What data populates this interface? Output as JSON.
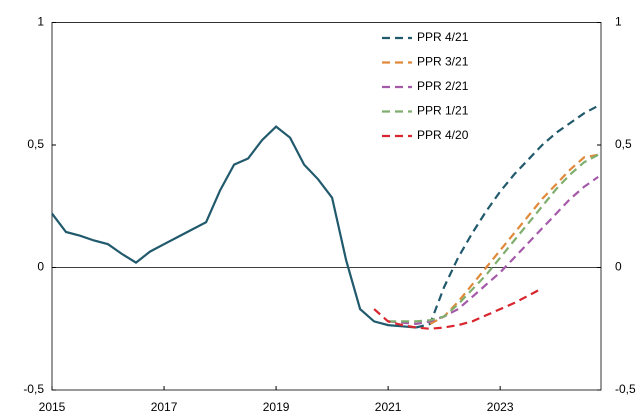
{
  "chart_data": {
    "type": "line",
    "xlim": [
      2015,
      2024.8
    ],
    "xticks": [
      2015,
      2017,
      2019,
      2021,
      2023
    ],
    "ylim": [
      -0.5,
      1
    ],
    "yticks": [
      {
        "value": -0.5,
        "label": "-0,5"
      },
      0,
      {
        "value": 0.5,
        "label": "0,5"
      },
      1
    ],
    "y2lim": [
      -0.5,
      1
    ],
    "y2ticks": [
      {
        "value": -0.5,
        "label": "-0,5"
      },
      0,
      {
        "value": 0.5,
        "label": "0,5"
      },
      1
    ],
    "zero_line": true,
    "legend": "top-right",
    "series": [
      {
        "color": "#215a6d",
        "style": "solid",
        "x": [
          2015,
          2015.25,
          2015.5,
          2015.75,
          2016,
          2016.25,
          2016.5,
          2016.75,
          2017,
          2017.25,
          2017.5,
          2017.75,
          2018,
          2018.25,
          2018.5,
          2018.75,
          2019,
          2019.25,
          2019.5,
          2019.75,
          2020,
          2020.25,
          2020.5,
          2020.75,
          2021,
          2021.25,
          2021.5
        ],
        "values": [
          0.22,
          0.145,
          0.13,
          0.11,
          0.095,
          0.055,
          0.02,
          0.065,
          0.095,
          0.125,
          0.155,
          0.185,
          0.315,
          0.42,
          0.445,
          0.52,
          0.575,
          0.53,
          0.42,
          0.36,
          0.285,
          0.03,
          -0.17,
          -0.22,
          -0.235,
          -0.24,
          -0.245
        ]
      },
      {
        "name": "PPR 4/21",
        "color": "#215a6d",
        "style": "dashed",
        "x": [
          2021.5,
          2021.75,
          2022,
          2022.25,
          2022.5,
          2022.75,
          2023,
          2023.25,
          2023.5,
          2023.75,
          2024,
          2024.25,
          2024.5,
          2024.75
        ],
        "values": [
          -0.245,
          -0.23,
          -0.08,
          0.04,
          0.14,
          0.23,
          0.31,
          0.38,
          0.44,
          0.5,
          0.55,
          0.59,
          0.63,
          0.66
        ]
      },
      {
        "name": "PPR 3/21",
        "color": "#e0893a",
        "style": "dashed",
        "x": [
          2021.75,
          2022,
          2022.25,
          2022.5,
          2022.75,
          2023,
          2023.25,
          2023.5,
          2023.75,
          2024,
          2024.25,
          2024.5,
          2024.75
        ],
        "values": [
          -0.23,
          -0.2,
          -0.14,
          -0.07,
          0.0,
          0.07,
          0.14,
          0.21,
          0.28,
          0.34,
          0.4,
          0.45,
          0.46
        ]
      },
      {
        "name": "PPR 2/21",
        "color": "#a45aa8",
        "style": "dashed",
        "x": [
          2021,
          2021.25,
          2021.5,
          2021.75,
          2022,
          2022.25,
          2022.5,
          2022.75,
          2023,
          2023.25,
          2023.5,
          2023.75,
          2024,
          2024.25,
          2024.5,
          2024.75
        ],
        "values": [
          -0.22,
          -0.225,
          -0.23,
          -0.22,
          -0.2,
          -0.17,
          -0.12,
          -0.07,
          -0.02,
          0.04,
          0.1,
          0.16,
          0.22,
          0.28,
          0.33,
          0.37
        ]
      },
      {
        "name": "PPR 1/21",
        "color": "#7fae6e",
        "style": "dashed",
        "x": [
          2021,
          2021.25,
          2021.5,
          2021.75,
          2022,
          2022.25,
          2022.5,
          2022.75,
          2023,
          2023.25,
          2023.5,
          2023.75,
          2024,
          2024.25,
          2024.5,
          2024.75
        ],
        "values": [
          -0.22,
          -0.22,
          -0.22,
          -0.215,
          -0.2,
          -0.15,
          -0.09,
          -0.03,
          0.04,
          0.11,
          0.18,
          0.25,
          0.32,
          0.38,
          0.43,
          0.46
        ]
      },
      {
        "name": "PPR 4/20",
        "color": "#d9262e",
        "style": "dashed",
        "x": [
          2020.75,
          2021,
          2021.25,
          2021.5,
          2021.75,
          2022,
          2022.25,
          2022.5,
          2022.75,
          2023,
          2023.25,
          2023.5,
          2023.75
        ],
        "values": [
          -0.17,
          -0.22,
          -0.235,
          -0.245,
          -0.25,
          -0.245,
          -0.235,
          -0.22,
          -0.195,
          -0.17,
          -0.145,
          -0.115,
          -0.085
        ]
      }
    ]
  }
}
